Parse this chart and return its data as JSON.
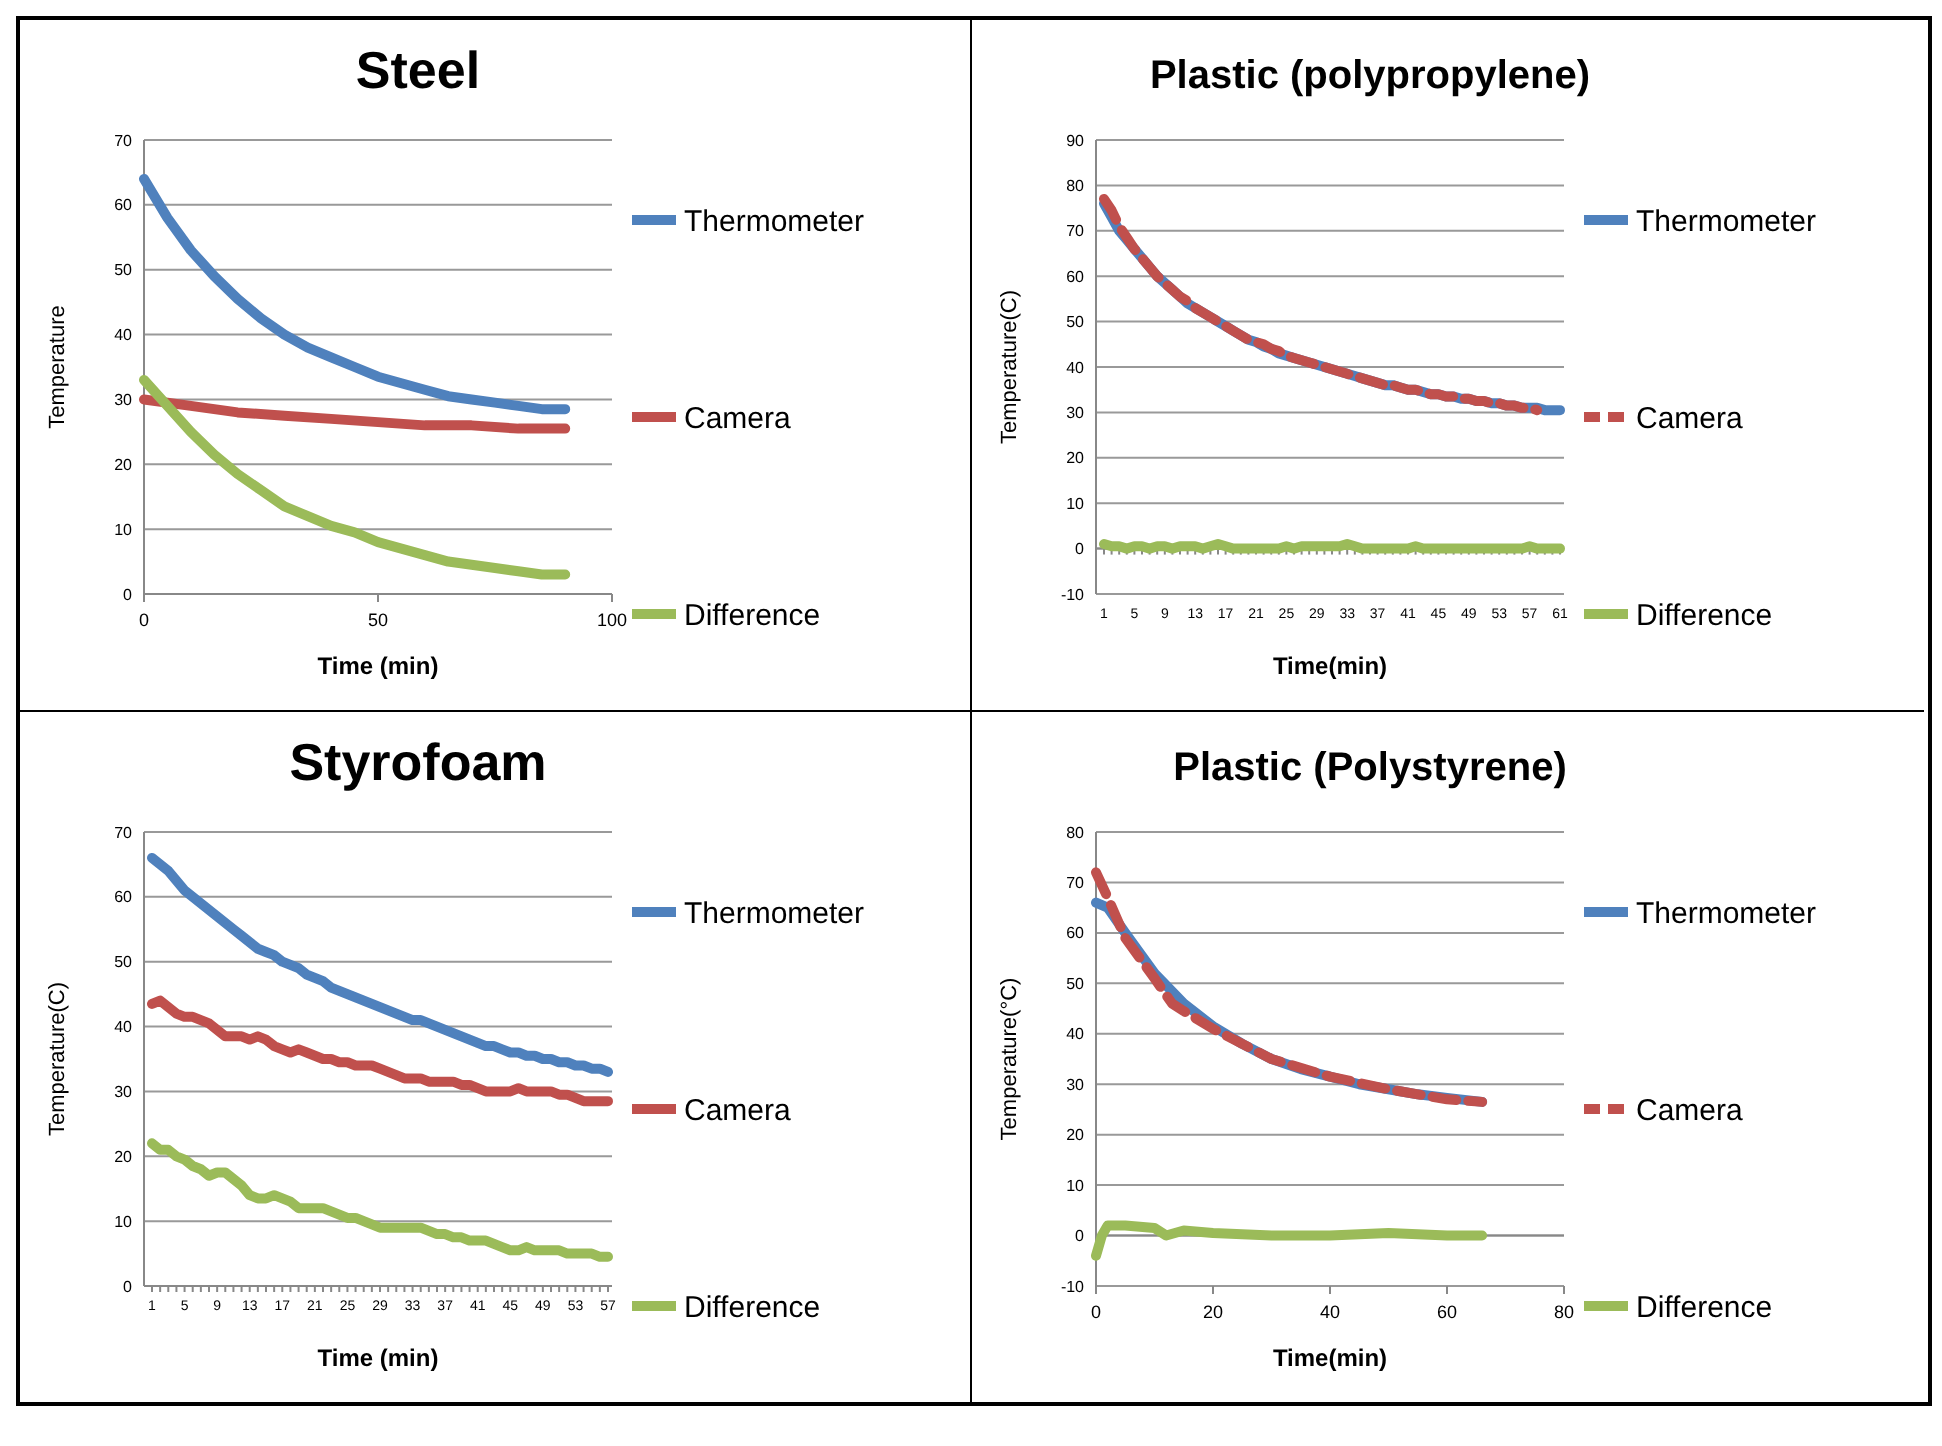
{
  "chart_data": [
    {
      "type": "line",
      "title": "Steel",
      "xlabel": "Time (min)",
      "ylabel": "Temperature",
      "xlim": [
        0,
        100
      ],
      "xticks": [
        0,
        50,
        100
      ],
      "ylim": [
        0,
        70
      ],
      "yticks": [
        0,
        10,
        20,
        30,
        40,
        50,
        60,
        70
      ],
      "grid": "y",
      "legend": "right",
      "marker": "none",
      "line_style": "solid",
      "series": [
        {
          "name": "Thermometer",
          "color": "#4f81bd",
          "x": [
            0,
            5,
            10,
            15,
            20,
            25,
            30,
            35,
            40,
            45,
            50,
            55,
            60,
            65,
            70,
            75,
            80,
            85,
            90
          ],
          "values": [
            64,
            58,
            53,
            49,
            45.5,
            42.5,
            40,
            38,
            36.5,
            35,
            33.5,
            32.5,
            31.5,
            30.5,
            30,
            29.5,
            29,
            28.5,
            28.5
          ]
        },
        {
          "name": "Camera",
          "color": "#c0504d",
          "x": [
            0,
            10,
            20,
            30,
            40,
            50,
            60,
            70,
            80,
            90
          ],
          "values": [
            30,
            29,
            28,
            27.5,
            27,
            26.5,
            26,
            26,
            25.5,
            25.5
          ]
        },
        {
          "name": "Difference",
          "color": "#9bbb59",
          "x": [
            0,
            5,
            10,
            15,
            20,
            25,
            30,
            35,
            40,
            45,
            50,
            55,
            60,
            65,
            70,
            75,
            80,
            85,
            90
          ],
          "values": [
            33,
            29,
            25,
            21.5,
            18.5,
            16,
            13.5,
            12,
            10.5,
            9.5,
            8,
            7,
            6,
            5,
            4.5,
            4,
            3.5,
            3,
            3
          ]
        }
      ]
    },
    {
      "type": "line",
      "title": "Plastic (polypropylene)",
      "xlabel": "Time(min)",
      "ylabel": "Temperature(C)",
      "ylim": [
        -10,
        90
      ],
      "yticks": [
        -10,
        0,
        10,
        20,
        30,
        40,
        50,
        60,
        70,
        80,
        90
      ],
      "grid": "y",
      "legend": "right",
      "marker": "none",
      "categories": [
        "1",
        null,
        null,
        null,
        "5",
        null,
        null,
        null,
        "9",
        null,
        null,
        null,
        "13",
        null,
        null,
        null,
        "17",
        null,
        null,
        null,
        "21",
        null,
        null,
        null,
        "25",
        null,
        null,
        null,
        "29",
        null,
        null,
        null,
        "33",
        null,
        null,
        null,
        "37",
        null,
        null,
        null,
        "41",
        null,
        null,
        null,
        "45",
        null,
        null,
        null,
        "49",
        null,
        null,
        null,
        "53",
        null,
        null,
        null,
        "57",
        null,
        null,
        null,
        "61"
      ],
      "series": [
        {
          "name": "Thermometer",
          "color": "#4f81bd",
          "line_style": "solid",
          "values": [
            76,
            73,
            70,
            68,
            66,
            64,
            62,
            60,
            58.5,
            57,
            55.5,
            54,
            53,
            52,
            51,
            50,
            49,
            48,
            47,
            46,
            45.5,
            44.5,
            44,
            43,
            42.5,
            42,
            41.5,
            41,
            40.5,
            40,
            39.5,
            39,
            38.5,
            38,
            37.5,
            37,
            36.5,
            36,
            36,
            35.5,
            35,
            35,
            34.5,
            34,
            34,
            33.5,
            33.5,
            33,
            33,
            32.5,
            32.5,
            32,
            32,
            31.5,
            31.5,
            31,
            31,
            31,
            30.5,
            30.5,
            30.5
          ]
        },
        {
          "name": "Camera",
          "color": "#c0504d",
          "line_style": "dashed",
          "values": [
            77,
            74.5,
            71,
            68.5,
            66,
            64,
            62,
            60,
            58.5,
            57,
            55.5,
            54.5,
            53,
            52,
            51,
            50,
            49,
            48,
            47,
            46,
            45.5,
            45,
            44,
            43.5,
            42.5,
            42,
            41.5,
            41,
            40.5,
            40,
            39.5,
            39,
            38.5,
            38,
            37.5,
            37,
            36.5,
            36,
            36,
            35.5,
            35,
            35,
            34.5,
            34,
            34,
            33.5,
            33.5,
            33,
            33,
            32.5,
            32.5,
            32,
            32,
            31.5,
            31.5,
            31,
            31,
            30.5,
            null,
            null,
            null
          ]
        },
        {
          "name": "Difference",
          "color": "#9bbb59",
          "line_style": "solid",
          "values": [
            1,
            0.5,
            0.5,
            0,
            0.5,
            0.5,
            0,
            0.5,
            0.5,
            0,
            0.5,
            0.5,
            0.5,
            0,
            0.5,
            1,
            0.5,
            0,
            0,
            0,
            0,
            0,
            0,
            0,
            0.5,
            0,
            0.5,
            0.5,
            0.5,
            0.5,
            0.5,
            0.5,
            1,
            0.5,
            0,
            0,
            0,
            0,
            0,
            0,
            0,
            0.5,
            0,
            0,
            0,
            0,
            0,
            0,
            0,
            0,
            0,
            0,
            0,
            0,
            0,
            0,
            0.5,
            0,
            0,
            0,
            0
          ]
        }
      ]
    },
    {
      "type": "line",
      "title": "Styrofoam",
      "xlabel": "Time (min)",
      "ylabel": "Temperature(C)",
      "ylim": [
        0,
        70
      ],
      "yticks": [
        0,
        10,
        20,
        30,
        40,
        50,
        60,
        70
      ],
      "grid": "y",
      "legend": "right",
      "marker": "none",
      "line_style": "solid",
      "categories": [
        "1",
        null,
        null,
        null,
        "5",
        null,
        null,
        null,
        "9",
        null,
        null,
        null,
        "13",
        null,
        null,
        null,
        "17",
        null,
        null,
        null,
        "21",
        null,
        null,
        null,
        "25",
        null,
        null,
        null,
        "29",
        null,
        null,
        null,
        "33",
        null,
        null,
        null,
        "37",
        null,
        null,
        null,
        "41",
        null,
        null,
        null,
        "45",
        null,
        null,
        null,
        "49",
        null,
        null,
        null,
        "53",
        null,
        null,
        null,
        "57"
      ],
      "series": [
        {
          "name": "Thermometer",
          "color": "#4f81bd",
          "values": [
            66,
            65,
            64,
            62.5,
            61,
            60,
            59,
            58,
            57,
            56,
            55,
            54,
            53,
            52,
            51.5,
            51,
            50,
            49.5,
            49,
            48,
            47.5,
            47,
            46,
            45.5,
            45,
            44.5,
            44,
            43.5,
            43,
            42.5,
            42,
            41.5,
            41,
            41,
            40.5,
            40,
            39.5,
            39,
            38.5,
            38,
            37.5,
            37,
            37,
            36.5,
            36,
            36,
            35.5,
            35.5,
            35,
            35,
            34.5,
            34.5,
            34,
            34,
            33.5,
            33.5,
            33
          ]
        },
        {
          "name": "Camera",
          "color": "#c0504d",
          "values": [
            43.5,
            44,
            43,
            42,
            41.5,
            41.5,
            41,
            40.5,
            39.5,
            38.5,
            38.5,
            38.5,
            38,
            38.5,
            38,
            37,
            36.5,
            36,
            36.5,
            36,
            35.5,
            35,
            35,
            34.5,
            34.5,
            34,
            34,
            34,
            33.5,
            33,
            32.5,
            32,
            32,
            32,
            31.5,
            31.5,
            31.5,
            31.5,
            31,
            31,
            30.5,
            30,
            30,
            30,
            30,
            30.5,
            30,
            30,
            30,
            30,
            29.5,
            29.5,
            29,
            28.5,
            28.5,
            28.5,
            28.5
          ]
        },
        {
          "name": "Difference",
          "color": "#9bbb59",
          "values": [
            22,
            21,
            21,
            20,
            19.5,
            18.5,
            18,
            17,
            17.5,
            17.5,
            16.5,
            15.5,
            14,
            13.5,
            13.5,
            14,
            13.5,
            13,
            12,
            12,
            12,
            12,
            11.5,
            11,
            10.5,
            10.5,
            10,
            9.5,
            9,
            9,
            9,
            9,
            9,
            9,
            8.5,
            8,
            8,
            7.5,
            7.5,
            7,
            7,
            7,
            6.5,
            6,
            5.5,
            5.5,
            6,
            5.5,
            5.5,
            5.5,
            5.5,
            5,
            5,
            5,
            5,
            4.5,
            4.5
          ]
        }
      ]
    },
    {
      "type": "line",
      "title": "Plastic (Polystyrene)",
      "xlabel": "Time(min)",
      "ylabel": "Temperature(°C)",
      "xlim": [
        0,
        80
      ],
      "xticks": [
        0,
        20,
        40,
        60,
        80
      ],
      "ylim": [
        -10,
        80
      ],
      "yticks": [
        -10,
        0,
        10,
        20,
        30,
        40,
        50,
        60,
        70,
        80
      ],
      "grid": "y",
      "legend": "right",
      "marker": "none",
      "series": [
        {
          "name": "Thermometer",
          "color": "#4f81bd",
          "line_style": "solid",
          "x": [
            0,
            2,
            5,
            10,
            15,
            20,
            25,
            30,
            35,
            40,
            45,
            50,
            55,
            60,
            66
          ],
          "values": [
            66,
            65,
            60,
            52,
            46,
            41.5,
            38,
            35,
            33,
            31.5,
            30,
            29,
            28,
            27.3,
            26.5
          ]
        },
        {
          "name": "Camera",
          "color": "#c0504d",
          "line_style": "dashed",
          "x": [
            0,
            2,
            5,
            10,
            13,
            15,
            20,
            25,
            30,
            40,
            50,
            60,
            66
          ],
          "values": [
            72,
            67,
            59,
            51,
            46,
            44.5,
            41,
            38,
            35,
            31.5,
            29,
            27,
            26.5
          ]
        },
        {
          "name": "Difference",
          "color": "#9bbb59",
          "line_style": "solid",
          "x": [
            0,
            1,
            2,
            5,
            10,
            12,
            15,
            20,
            30,
            40,
            50,
            60,
            66
          ],
          "values": [
            -4,
            0,
            2,
            2,
            1.5,
            0,
            1,
            0.5,
            0,
            0,
            0.5,
            0,
            0
          ]
        }
      ]
    }
  ]
}
